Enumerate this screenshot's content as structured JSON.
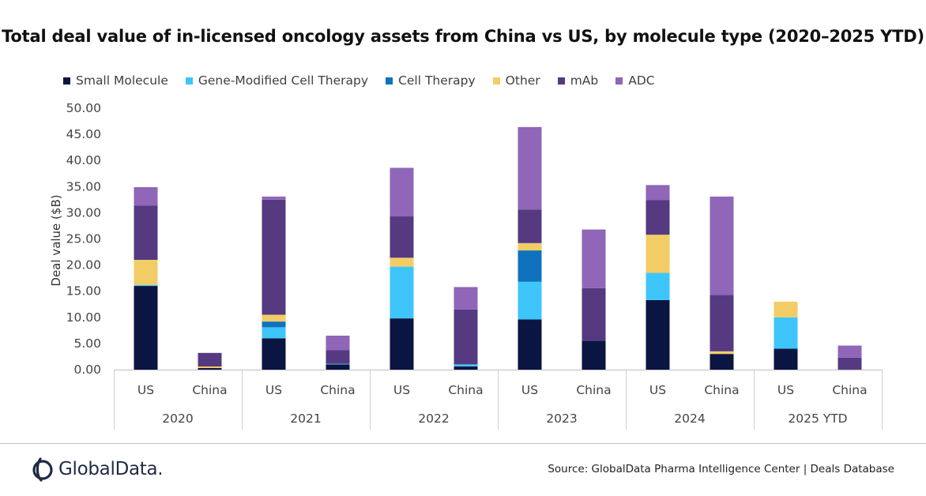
{
  "title": "Total deal value of in-licensed oncology assets from China vs US, by molecule type (2020–2025 YTD)",
  "source": "Source: GlobalData Pharma Intelligence Center | Deals Database",
  "logo_text": "GlobalData.",
  "chart_data": {
    "type": "bar",
    "stacked": true,
    "ylabel": "Deal value ($B)",
    "ylim": [
      0,
      50
    ],
    "yticks": [
      "0.00",
      "5.00",
      "10.00",
      "15.00",
      "20.00",
      "25.00",
      "30.00",
      "35.00",
      "40.00",
      "45.00",
      "50.00"
    ],
    "legend_position": "top-left",
    "grid": false,
    "groups": [
      {
        "label": "2020",
        "categories": [
          "US",
          "China"
        ]
      },
      {
        "label": "2021",
        "categories": [
          "US",
          "China"
        ]
      },
      {
        "label": "2022",
        "categories": [
          "US",
          "China"
        ]
      },
      {
        "label": "2023",
        "categories": [
          "US",
          "China"
        ]
      },
      {
        "label": "2024",
        "categories": [
          "US",
          "China"
        ]
      },
      {
        "label": "2025 YTD",
        "categories": [
          "US",
          "China"
        ]
      }
    ],
    "series": [
      {
        "name": "Small Molecule",
        "color": "#0b1541",
        "values": [
          16.0,
          0.3,
          6.0,
          1.0,
          9.8,
          0.6,
          9.6,
          5.5,
          13.3,
          3.0,
          4.0,
          0.0
        ]
      },
      {
        "name": "Gene-Modified Cell Therapy",
        "color": "#3ec5fa",
        "values": [
          0.2,
          0.0,
          2.1,
          0.1,
          9.9,
          0.4,
          7.2,
          0.0,
          5.2,
          0.0,
          6.0,
          0.0
        ]
      },
      {
        "name": "Cell Therapy",
        "color": "#0f72bd",
        "values": [
          0.0,
          0.0,
          1.1,
          0.0,
          0.0,
          0.0,
          6.0,
          0.0,
          0.0,
          0.0,
          0.0,
          0.0
        ]
      },
      {
        "name": "Other",
        "color": "#f2cd66",
        "values": [
          4.8,
          0.3,
          1.3,
          0.0,
          1.7,
          0.0,
          1.4,
          0.0,
          7.3,
          0.5,
          3.0,
          0.0
        ]
      },
      {
        "name": "mAb",
        "color": "#553a82",
        "values": [
          10.4,
          2.6,
          22.0,
          2.6,
          7.9,
          10.5,
          6.4,
          10.1,
          6.6,
          10.8,
          0.0,
          2.3
        ]
      },
      {
        "name": "ADC",
        "color": "#8f66b8",
        "values": [
          3.5,
          0.0,
          0.6,
          2.8,
          9.3,
          4.3,
          15.8,
          11.2,
          2.9,
          18.8,
          0.0,
          2.3
        ]
      }
    ]
  }
}
